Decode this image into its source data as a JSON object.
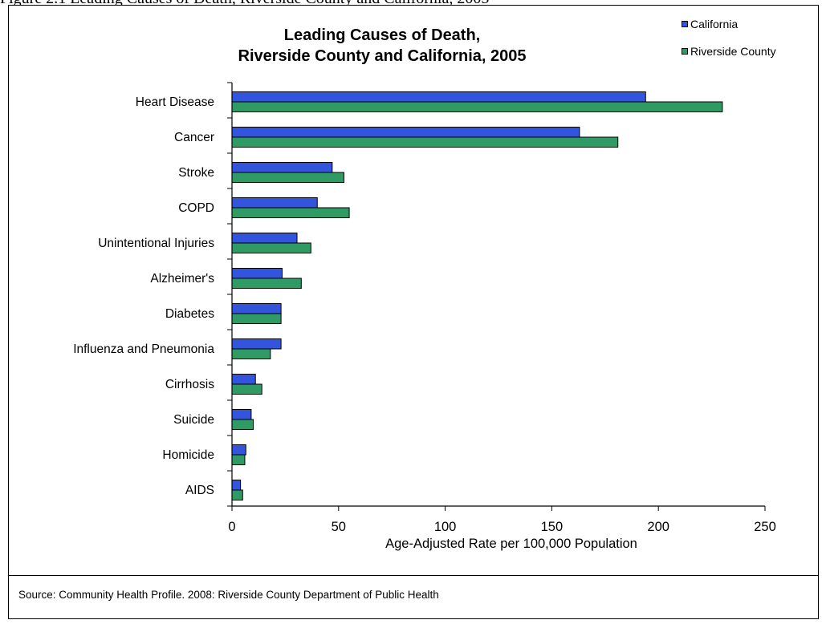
{
  "page": {
    "top_caption": "Figure 2.1 Leading Causes of Death, Riverside County and California, 2005",
    "source": "Source: Community Health Profile. 2008: Riverside County Department of Public Health"
  },
  "colors": {
    "california": "#3355dd",
    "riverside": "#2f9a63",
    "axis": "#000000"
  },
  "chart_data": {
    "type": "bar",
    "orientation": "horizontal",
    "title": [
      "Leading Causes of Death,",
      "Riverside County and California, 2005"
    ],
    "xlabel": "Age-Adjusted Rate per 100,000 Population",
    "ylabel": "",
    "xlim": [
      0,
      250
    ],
    "xticks": [
      0,
      50,
      100,
      150,
      200,
      250
    ],
    "grid": false,
    "legend_position": "top-right",
    "categories": [
      "Heart Disease",
      "Cancer",
      "Stroke",
      "COPD",
      "Unintentional Injuries",
      "Alzheimer's",
      "Diabetes",
      "Influenza and Pneumonia",
      "Cirrhosis",
      "Suicide",
      "Homicide",
      "AIDS"
    ],
    "series": [
      {
        "name": "California",
        "values": [
          194,
          163,
          47,
          40,
          30.5,
          23.5,
          23,
          23,
          11,
          9,
          6.5,
          4
        ]
      },
      {
        "name": "Riverside County",
        "values": [
          230,
          181,
          52.5,
          55,
          37,
          32.5,
          23,
          18,
          14,
          10,
          6,
          5
        ]
      }
    ]
  }
}
